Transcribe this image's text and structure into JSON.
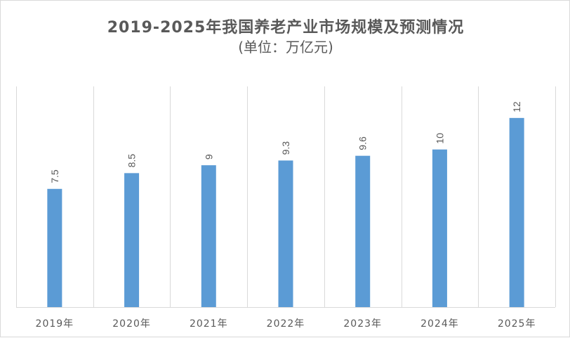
{
  "chart_data": {
    "type": "bar",
    "title": "2019-2025年我国养老产业市场规模及预测情况",
    "subtitle": "(单位：万亿元)",
    "categories": [
      "2019年",
      "2020年",
      "2021年",
      "2022年",
      "2023年",
      "2024年",
      "2025年"
    ],
    "values": [
      7.5,
      8.5,
      9,
      9.3,
      9.6,
      10,
      12
    ],
    "data_labels": [
      "7.5",
      "8.5",
      "9",
      "9.3",
      "9.6",
      "10",
      "12"
    ],
    "xlabel": "",
    "ylabel": "",
    "ylim": [
      0,
      14
    ],
    "grid": "vertical separators",
    "legend": "none",
    "bar_color": "#5b9bd5",
    "grid_color": "#d9d9d9"
  }
}
